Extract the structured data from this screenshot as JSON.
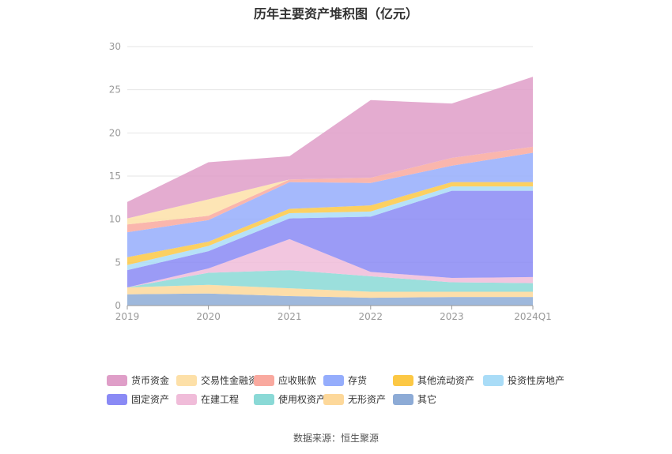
{
  "chart_data": {
    "type": "area",
    "stacked": true,
    "title": "历年主要资产堆积图（亿元）",
    "source": "数据来源：恒生聚源",
    "x": [
      "2019",
      "2020",
      "2021",
      "2022",
      "2023",
      "2024Q1"
    ],
    "ylim": [
      0,
      30
    ],
    "yticks": [
      "0",
      "5",
      "10",
      "15",
      "20",
      "25",
      "30"
    ],
    "grid": true,
    "legend_position": "bottom",
    "series": [
      {
        "name": "其它",
        "color": "#8dabd6",
        "values": [
          1.3,
          1.4,
          1.1,
          0.9,
          1.0,
          1.0
        ]
      },
      {
        "name": "无形资产",
        "color": "#fdd89a",
        "values": [
          0.8,
          1.0,
          0.9,
          0.7,
          0.6,
          0.6
        ]
      },
      {
        "name": "使用权资产",
        "color": "#8ad9d6",
        "values": [
          0.0,
          1.4,
          2.1,
          1.8,
          1.1,
          1.0
        ]
      },
      {
        "name": "在建工程",
        "color": "#f0bcd9",
        "values": [
          0.0,
          0.5,
          3.6,
          0.5,
          0.5,
          0.7
        ]
      },
      {
        "name": "固定资产",
        "color": "#8a8af5",
        "values": [
          2.0,
          2.0,
          2.4,
          6.4,
          10.1,
          10.0
        ]
      },
      {
        "name": "投资性房地产",
        "color": "#a9dcf7",
        "values": [
          0.6,
          0.6,
          0.6,
          0.6,
          0.5,
          0.5
        ]
      },
      {
        "name": "其他流动资产",
        "color": "#fcc845",
        "values": [
          0.9,
          0.5,
          0.5,
          0.7,
          0.5,
          0.5
        ]
      },
      {
        "name": "存货",
        "color": "#95adfc",
        "values": [
          2.9,
          2.5,
          3.1,
          2.6,
          1.9,
          3.4
        ]
      },
      {
        "name": "应收账款",
        "color": "#f9a99f",
        "values": [
          0.9,
          0.5,
          0.3,
          0.6,
          0.9,
          0.7
        ]
      },
      {
        "name": "交易性金融资产",
        "color": "#fde0a8",
        "values": [
          0.7,
          1.9,
          0.0,
          0.0,
          0.0,
          0.0
        ]
      },
      {
        "name": "货币资金",
        "color": "#df9ec8",
        "values": [
          1.9,
          4.3,
          2.7,
          9.0,
          6.3,
          8.1
        ]
      }
    ],
    "legend_order": [
      "货币资金",
      "交易性金融资产",
      "应收账款",
      "存货",
      "其他流动资产",
      "投资性房地产",
      "固定资产",
      "在建工程",
      "使用权资产",
      "无形资产",
      "其它"
    ]
  }
}
